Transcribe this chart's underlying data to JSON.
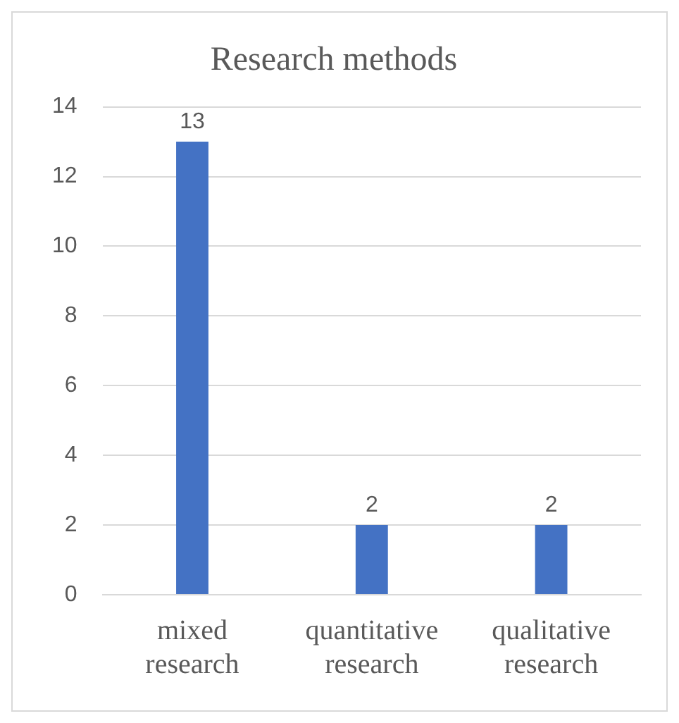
{
  "chart_data": {
    "type": "bar",
    "title": "Research methods",
    "categories": [
      "mixed research",
      "quantitative research",
      "qualitative research"
    ],
    "values": [
      13,
      2,
      2
    ],
    "color": "#4472c4",
    "ylim": [
      0,
      14
    ],
    "yticks": [
      0,
      2,
      4,
      6,
      8,
      10,
      12,
      14
    ],
    "grid": "y",
    "data_labels": true,
    "legend": false
  }
}
